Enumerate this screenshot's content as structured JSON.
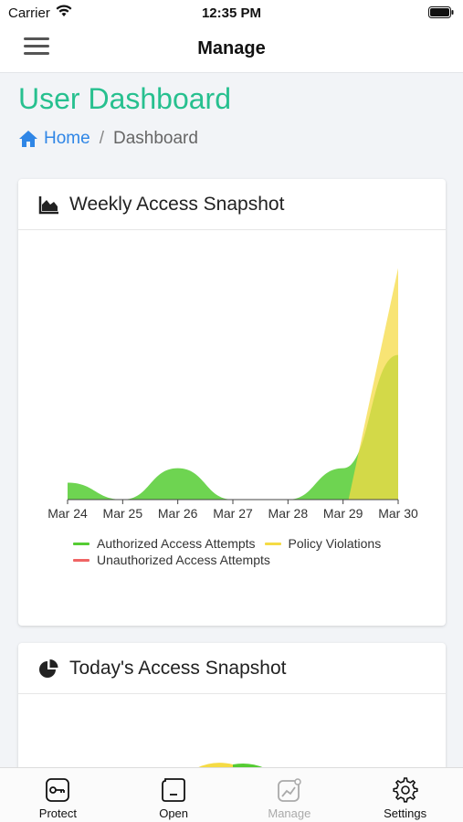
{
  "status_bar": {
    "carrier": "Carrier",
    "time": "12:35 PM"
  },
  "nav": {
    "title": "Manage"
  },
  "page": {
    "title": "User Dashboard"
  },
  "breadcrumb": {
    "home": "Home",
    "separator": "/",
    "current": "Dashboard"
  },
  "weekly_card": {
    "title": "Weekly Access Snapshot"
  },
  "today_card": {
    "title": "Today's Access Snapshot"
  },
  "chart_data": {
    "type": "area",
    "categories": [
      "Mar 24",
      "Mar 25",
      "Mar 26",
      "Mar 27",
      "Mar 28",
      "Mar 29",
      "Mar 30"
    ],
    "series": [
      {
        "name": "Authorized Access Attempts",
        "color": "#55cc33",
        "values": [
          0.7,
          0,
          1.3,
          0,
          0,
          1.3,
          6.0
        ]
      },
      {
        "name": "Policy Violations",
        "color": "#f5db45",
        "values": [
          0,
          0,
          0,
          0,
          0,
          0,
          9.6
        ]
      },
      {
        "name": "Unauthorized Access Attempts",
        "color": "#f06464",
        "values": [
          0,
          0,
          0,
          0,
          0,
          0,
          0
        ]
      }
    ],
    "ylim": [
      0,
      10
    ],
    "grid": false,
    "legend_position": "bottom"
  },
  "colors": {
    "accent": "#27c08f",
    "link": "#2f86e6"
  },
  "tabs": [
    {
      "label": "Protect",
      "icon": "key-icon",
      "enabled": true
    },
    {
      "label": "Open",
      "icon": "open-icon",
      "enabled": true
    },
    {
      "label": "Manage",
      "icon": "chart-icon",
      "enabled": false
    },
    {
      "label": "Settings",
      "icon": "gear-icon",
      "enabled": true
    }
  ]
}
